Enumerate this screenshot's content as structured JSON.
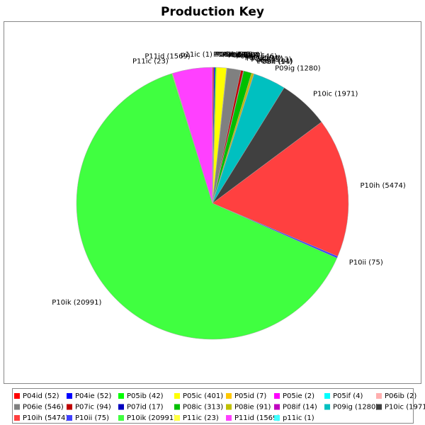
{
  "chart_data": {
    "type": "pie",
    "title": "Production Key",
    "categories": [
      "P04id (52)",
      "P04ie (52)",
      "P05ib (42)",
      "P05ic (401)",
      "P05id (7)",
      "P05ie (2)",
      "P05if (4)",
      "P06ib (2)",
      "P06ie (546)",
      "P07ic (94)",
      "P07id (17)",
      "P08ic (313)",
      "P08ie (91)",
      "P08if (14)",
      "P09ig (1280)",
      "P10ic (1971)",
      "P10ih (5474)",
      "P10ii (75)",
      "P10ik (20991)",
      "P11ic (23)",
      "P11id (1569)",
      "p11ic (1)"
    ],
    "values": [
      52,
      52,
      42,
      401,
      7,
      2,
      4,
      2,
      546,
      94,
      17,
      313,
      91,
      14,
      1280,
      1971,
      5474,
      75,
      20991,
      23,
      1569,
      1
    ],
    "colors": [
      "#FF0000",
      "#0000FF",
      "#00FF00",
      "#FFFF00",
      "#FFC800",
      "#FF00FF",
      "#00FFFF",
      "#FFAFAF",
      "#808080",
      "#C00000",
      "#0000C0",
      "#00C000",
      "#C0C000",
      "#C000C0",
      "#00C0C0",
      "#404040",
      "#FF4040",
      "#4040FF",
      "#40FF40",
      "#FFFF40",
      "#FF40FF",
      "#40FFFF"
    ],
    "legend": "bottom"
  }
}
